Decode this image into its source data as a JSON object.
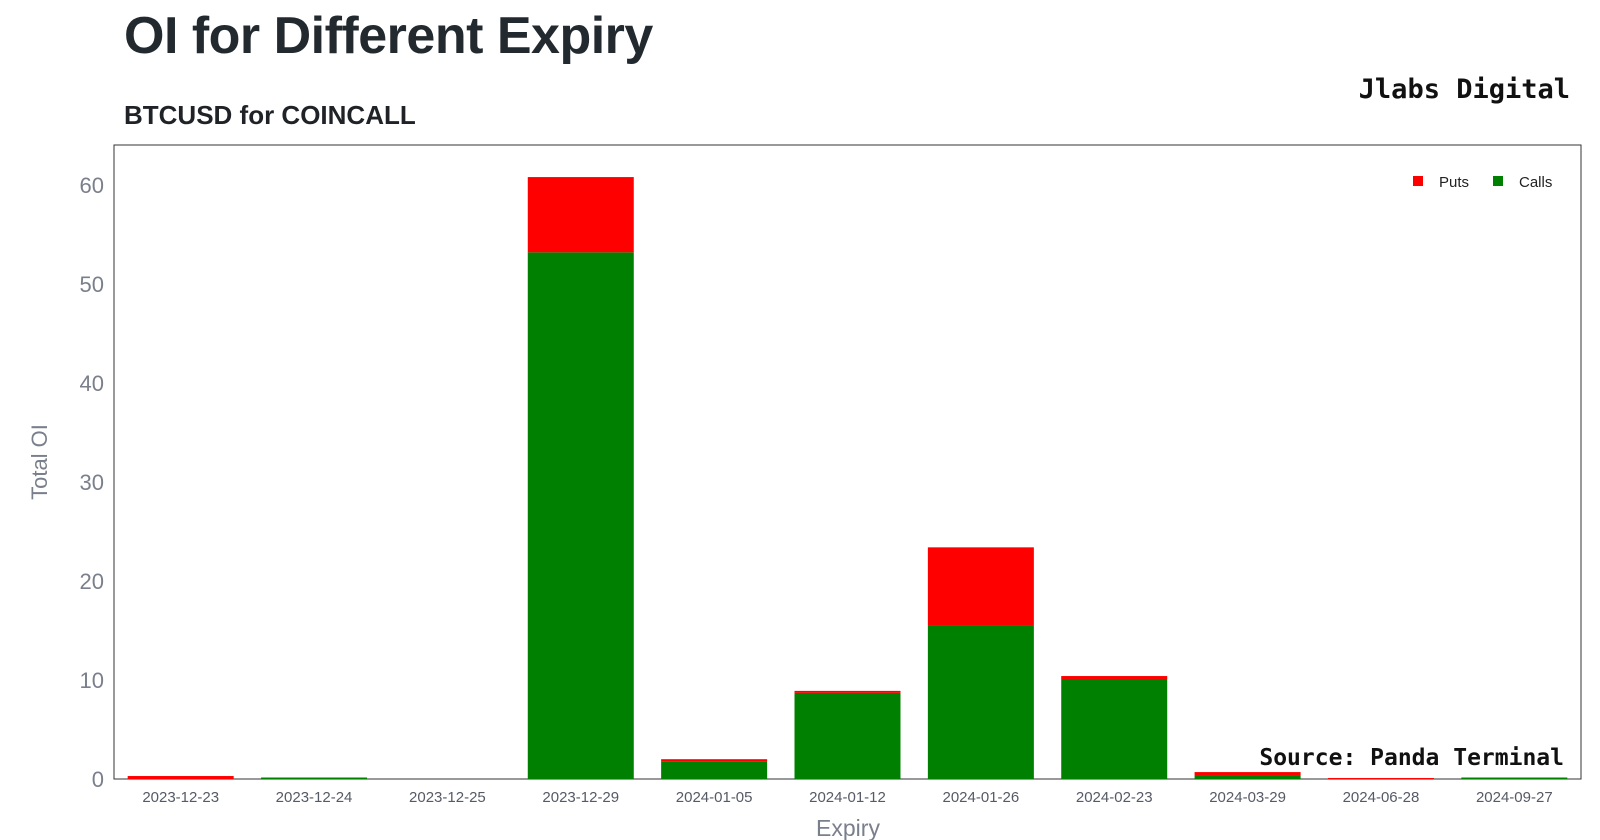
{
  "header": {
    "title": "OI for Different Expiry",
    "subtitle": "BTCUSD for COINCALL",
    "brand": "Jlabs Digital"
  },
  "chart_data": {
    "type": "bar",
    "stacked": true,
    "xlabel": "Expiry",
    "ylabel": "Total OI",
    "ylim": [
      0,
      64
    ],
    "yticks": [
      0,
      10,
      20,
      30,
      40,
      50,
      60
    ],
    "categories": [
      "2023-12-23",
      "2023-12-24",
      "2023-12-25",
      "2023-12-29",
      "2024-01-05",
      "2024-01-12",
      "2024-01-26",
      "2024-02-23",
      "2024-03-29",
      "2024-06-28",
      "2024-09-27"
    ],
    "series": [
      {
        "name": "Calls",
        "color": "#008000",
        "values": [
          0,
          0.15,
          0,
          53.2,
          1.8,
          8.7,
          15.5,
          10.1,
          0.4,
          0,
          0.15
        ]
      },
      {
        "name": "Puts",
        "color": "#ff0000",
        "values": [
          0.3,
          0,
          0,
          7.6,
          0.2,
          0.2,
          7.9,
          0.3,
          0.3,
          0.1,
          0
        ]
      }
    ],
    "legend_position": "top-right",
    "grid": false,
    "annotation": "Source: Panda Terminal"
  }
}
